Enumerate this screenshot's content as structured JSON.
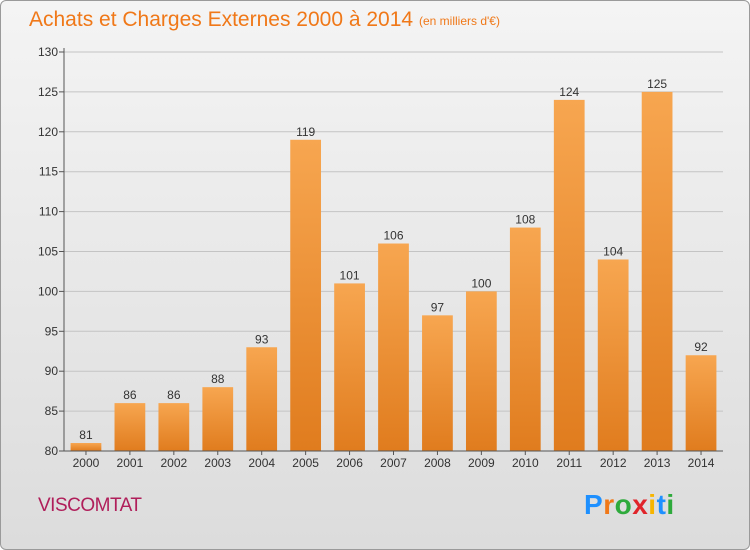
{
  "header": {
    "title": "Achats et Charges Externes 2000 à 2014",
    "subtitle": "(en milliers d'€)"
  },
  "footer": {
    "town": "VISCOMTAT",
    "logo_text": "Proxiti"
  },
  "colors": {
    "bar_light": "#f7a650",
    "bar_dark": "#e07c1e",
    "title": "#f07818",
    "town": "#b01e5a",
    "logo": [
      "#1e90ff",
      "#f07818",
      "#2eaa3c",
      "#e0242a",
      "#f7b500",
      "#1e90ff",
      "#2eaa3c"
    ]
  },
  "chart_data": {
    "type": "bar",
    "title": "Achats et Charges Externes 2000 à 2014",
    "subtitle": "(en milliers d'€)",
    "xlabel": "",
    "ylabel": "",
    "categories": [
      "2000",
      "2001",
      "2002",
      "2003",
      "2004",
      "2005",
      "2006",
      "2007",
      "2008",
      "2009",
      "2010",
      "2011",
      "2012",
      "2013",
      "2014"
    ],
    "values": [
      81,
      86,
      86,
      88,
      93,
      119,
      101,
      106,
      97,
      100,
      108,
      124,
      104,
      125,
      92
    ],
    "ylim": [
      80,
      130
    ],
    "yticks": [
      80,
      85,
      90,
      95,
      100,
      105,
      110,
      115,
      120,
      125,
      130
    ],
    "grid": true,
    "legend": "none"
  }
}
